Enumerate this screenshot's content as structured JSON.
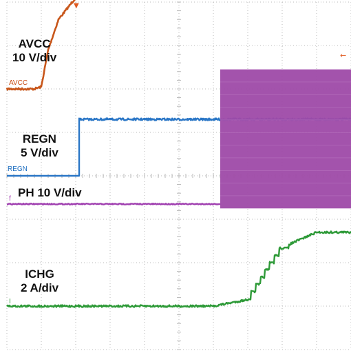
{
  "chart_data": {
    "type": "line",
    "title": "",
    "xlabel": "",
    "ylabel": "",
    "grid": true,
    "grid_divisions": {
      "x": 10,
      "y": 8
    },
    "x": [
      0,
      0.8,
      1.0,
      1.2,
      1.5,
      2.0,
      2.5,
      3.0,
      4.0,
      5.0,
      6.0,
      7.0,
      8.0,
      9.0,
      10.0
    ],
    "series": [
      {
        "name": "AVCC",
        "label": "AVCC",
        "scale": "10 V/div",
        "color": "#c8561a",
        "values": [
          0,
          0,
          0.05,
          0.9,
          1.6,
          2.1,
          2.35,
          2.45,
          2.5,
          2.5,
          2.5,
          2.5,
          2.5,
          2.5,
          2.5
        ]
      },
      {
        "name": "REGN",
        "label": "REGN",
        "scale": "5 V/div",
        "color": "#2a76c6",
        "values": [
          0,
          0,
          0,
          1.3,
          1.3,
          1.3,
          1.3,
          1.3,
          1.3,
          1.3,
          1.3,
          1.3,
          1.3,
          1.3,
          1.3
        ]
      },
      {
        "name": "PH",
        "label": "PH  10 V/div",
        "scale": "10 V/div",
        "color": "#a040b0",
        "values": [
          0,
          0,
          0,
          0,
          0,
          0,
          0,
          0,
          0,
          0,
          0,
          0,
          0.3,
          0.3,
          0.3
        ],
        "switching_from_x": 6.2,
        "switching_high": 3.1,
        "switching_low": -0.1
      },
      {
        "name": "ICHG",
        "label": "ICHG",
        "scale": "2 A/div",
        "color": "#2e9a38",
        "values": [
          0,
          0,
          0,
          0,
          0,
          0,
          0,
          0,
          0,
          0,
          0,
          0.15,
          1.35,
          1.7,
          1.7
        ]
      }
    ]
  },
  "labels": {
    "avcc_name": "AVCC",
    "avcc_scale": "10 V/div",
    "regn_name": "REGN",
    "regn_scale": "5 V/div",
    "ph": "PH  10 V/div",
    "ichg_name": "ICHG",
    "ichg_scale": "2 A/div"
  },
  "channel_tags": {
    "avcc": "AVCC",
    "regn": "REGN",
    "ph": "f",
    "ichg": "I"
  },
  "markers": {
    "trigger": "▼",
    "level": "←"
  },
  "colors": {
    "grid": "#b8b8b8",
    "avcc": "#c8561a",
    "avcc_edge": "#e0b820",
    "regn": "#2a76c6",
    "ph": "#a040b0",
    "ph_fill": "#9e4aa8",
    "ichg": "#2e9a38",
    "marker": "#e05a20"
  }
}
